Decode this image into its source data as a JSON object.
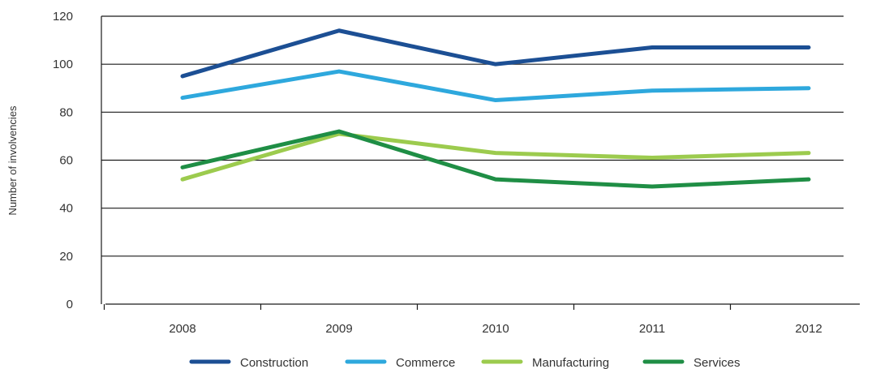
{
  "chart_data": {
    "type": "line",
    "title": "",
    "xlabel": "",
    "ylabel": "Number of involvencies",
    "x": [
      "2008",
      "2009",
      "2010",
      "2011",
      "2012"
    ],
    "ylim": [
      0,
      120
    ],
    "yticks": [
      0,
      20,
      40,
      60,
      80,
      100,
      120
    ],
    "grid": true,
    "legend_position": "bottom",
    "series": [
      {
        "name": "Construction",
        "color": "#1c4f94",
        "values": [
          95,
          114,
          100,
          107,
          107
        ]
      },
      {
        "name": "Commerce",
        "color": "#2ea8dd",
        "values": [
          86,
          97,
          85,
          89,
          90
        ]
      },
      {
        "name": "Manufacturing",
        "color": "#9ccb4e",
        "values": [
          52,
          71,
          63,
          61,
          63
        ]
      },
      {
        "name": "Services",
        "color": "#1f8e45",
        "values": [
          57,
          72,
          52,
          49,
          52
        ]
      }
    ]
  }
}
